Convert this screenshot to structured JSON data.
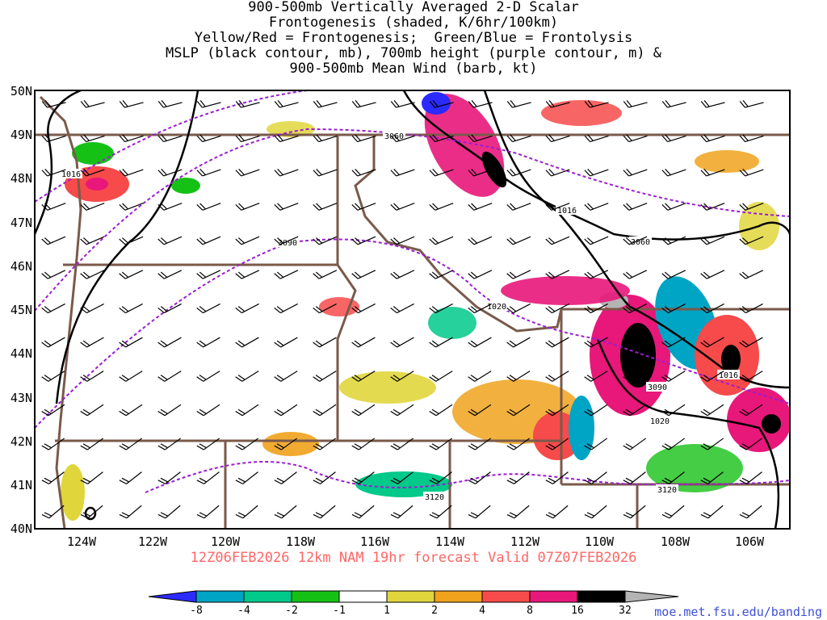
{
  "title": {
    "lines": [
      "900-500mb Vertically Averaged 2-D Scalar",
      "Frontogenesis (shaded, K/6hr/100km)",
      "Yellow/Red = Frontogenesis;  Green/Blue = Frontolysis",
      "MSLP (black contour, mb), 700mb height (purple contour, m) &",
      "900-500mb Mean Wind (barb, kt)"
    ]
  },
  "forecast_label": "12Z06FEB2026 12km NAM 19hr forecast Valid 07Z07FEB2026",
  "credit": "moe.met.fsu.edu/banding",
  "map": {
    "lat_labels": [
      "50N",
      "49N",
      "48N",
      "47N",
      "46N",
      "45N",
      "44N",
      "43N",
      "42N",
      "41N",
      "40N"
    ],
    "lon_labels": [
      "124W",
      "122W",
      "120W",
      "118W",
      "116W",
      "114W",
      "112W",
      "110W",
      "108W",
      "106W"
    ],
    "mslp_labels": [
      "1016",
      "1016",
      "1020",
      "1020",
      "1016"
    ],
    "height_labels": [
      "3060",
      "3090",
      "3060",
      "3090",
      "3120",
      "3120"
    ]
  },
  "colorbar": {
    "ticks": [
      "-8",
      "-4",
      "-2",
      "-1",
      "1",
      "2",
      "4",
      "8",
      "16",
      "32"
    ],
    "colors": [
      "#2b2bff",
      "#00a4c4",
      "#00c98a",
      "#16c116",
      "#2fe02f",
      "#ffffff",
      "#e0d63c",
      "#f0a21c",
      "#f74a4a",
      "#e8177a",
      "#000000",
      "#b4b4b4"
    ]
  },
  "colors": {
    "state_border": "#7a5a4a",
    "mslp": "#000000",
    "height": "#9b1ed0",
    "forecast_text": "#ff6666",
    "credit": "#3f4fd8"
  }
}
